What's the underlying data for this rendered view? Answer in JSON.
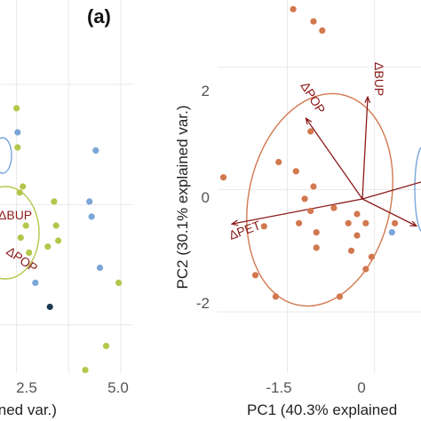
{
  "chart_data": [
    {
      "type": "scatter",
      "panel_label": "(a)",
      "xlabel": "ined var.)",
      "ylabel": "",
      "x_ticks": [
        "2.5",
        "5.0"
      ],
      "xlim": [
        -2.5,
        5.6
      ],
      "ylim": [
        -2.8,
        3.4
      ],
      "grid": true,
      "series": [
        {
          "color": "#b5c64a",
          "points": [
            [
              0.0,
              1.6
            ],
            [
              0.05,
              0.95
            ],
            [
              0.3,
              0.3
            ],
            [
              0.15,
              0.2
            ],
            [
              0.45,
              -0.35
            ],
            [
              1.8,
              0.05
            ],
            [
              1.9,
              -0.35
            ],
            [
              2.0,
              -0.6
            ],
            [
              3.3,
              -2.75
            ],
            [
              4.3,
              -2.35
            ],
            [
              4.9,
              -1.3
            ],
            [
              0.6,
              -0.8
            ],
            [
              1.5,
              -0.7
            ],
            [
              0.2,
              -0.55
            ]
          ]
        },
        {
          "color": "#7aa6d8",
          "points": [
            [
              0.05,
              1.2
            ],
            [
              3.8,
              0.9
            ],
            [
              3.5,
              0.05
            ],
            [
              3.6,
              -0.2
            ],
            [
              4.0,
              -1.05
            ],
            [
              0.9,
              -1.3
            ]
          ]
        },
        {
          "color": "#1f3a4f",
          "points": [
            [
              1.6,
              -1.7
            ]
          ]
        }
      ],
      "ellipses": [
        {
          "color": "#b5c64a"
        },
        {
          "color": "#7aa6d8"
        }
      ],
      "arrows": [
        {
          "label": "ΔBUP"
        },
        {
          "label": "ΔPOP"
        }
      ]
    },
    {
      "type": "scatter",
      "panel_label": "",
      "xlabel": "PC1 (40.3% explained",
      "ylabel": "PC2 (30.1% explained var.)",
      "x_ticks": [
        -1.5,
        0.0
      ],
      "y_ticks": [
        -2,
        0,
        2
      ],
      "xlim": [
        -2.7,
        0.8
      ],
      "ylim": [
        -3.0,
        3.1
      ],
      "grid": true,
      "series": [
        {
          "color": "#d2784f",
          "points": [
            [
              -1.4,
              2.95
            ],
            [
              -1.05,
              2.75
            ],
            [
              -0.9,
              2.6
            ],
            [
              -1.1,
              0.95
            ],
            [
              -1.65,
              0.45
            ],
            [
              -2.6,
              0.2
            ],
            [
              -1.35,
              0.3
            ],
            [
              -1.05,
              0.05
            ],
            [
              -1.2,
              -0.15
            ],
            [
              -1.1,
              -0.35
            ],
            [
              -1.3,
              -0.55
            ],
            [
              -1.9,
              -0.6
            ],
            [
              -0.7,
              -0.3
            ],
            [
              -0.3,
              -0.4
            ],
            [
              -0.15,
              -0.55
            ],
            [
              -0.45,
              -0.55
            ],
            [
              -1.0,
              -0.7
            ],
            [
              -0.3,
              -0.75
            ],
            [
              -1.0,
              -0.95
            ],
            [
              -0.4,
              -1.0
            ],
            [
              -0.05,
              -1.1
            ],
            [
              -0.15,
              -1.3
            ],
            [
              -2.05,
              -1.4
            ],
            [
              -1.7,
              -1.75
            ],
            [
              -0.6,
              -1.75
            ],
            [
              0.35,
              -0.55
            ]
          ]
        },
        {
          "color": "#7aa6d8",
          "points": [
            [
              0.3,
              -0.7
            ]
          ]
        }
      ],
      "ellipses": [
        {
          "color": "#d2784f"
        },
        {
          "color": "#7aa6d8"
        }
      ],
      "arrows": [
        {
          "label": "ΔBUP"
        },
        {
          "label": "ΔPOP"
        },
        {
          "label": "ΔPET"
        }
      ]
    }
  ]
}
